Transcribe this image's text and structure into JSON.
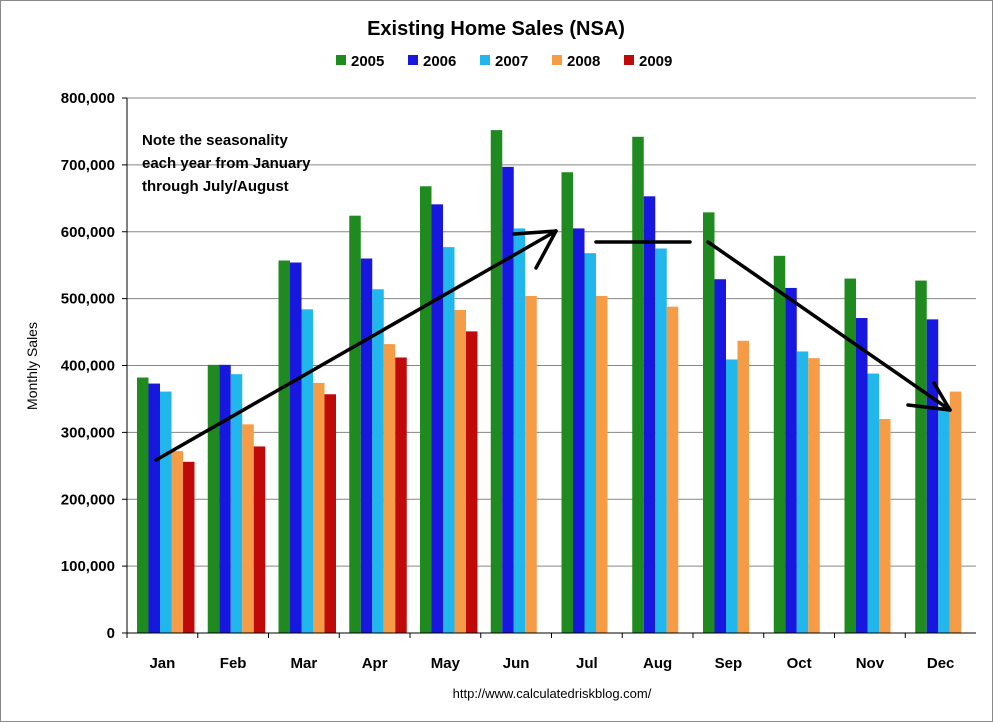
{
  "chart_data": {
    "type": "bar",
    "title": "Existing Home Sales (NSA)",
    "xlabel": "",
    "ylabel": "Monthly Sales",
    "ylim": [
      0,
      800000
    ],
    "yticks": [
      "0",
      "100,000",
      "200,000",
      "300,000",
      "400,000",
      "500,000",
      "600,000",
      "700,000",
      "800,000"
    ],
    "categories": [
      "Jan",
      "Feb",
      "Mar",
      "Apr",
      "May",
      "Jun",
      "Jul",
      "Aug",
      "Sep",
      "Oct",
      "Nov",
      "Dec"
    ],
    "grid": true,
    "legend_position": "top",
    "series": [
      {
        "name": "2005",
        "color": "#1f8a1f",
        "values": [
          382000,
          401000,
          557000,
          624000,
          668000,
          752000,
          689000,
          742000,
          629000,
          564000,
          530000,
          527000
        ]
      },
      {
        "name": "2006",
        "color": "#1717e0",
        "values": [
          373000,
          401000,
          554000,
          560000,
          641000,
          697000,
          605000,
          653000,
          529000,
          516000,
          471000,
          469000
        ]
      },
      {
        "name": "2007",
        "color": "#21b6ec",
        "values": [
          361000,
          387000,
          484000,
          514000,
          577000,
          605000,
          568000,
          575000,
          409000,
          421000,
          388000,
          338000
        ]
      },
      {
        "name": "2008",
        "color": "#f79c46",
        "values": [
          272000,
          312000,
          374000,
          432000,
          483000,
          504000,
          504000,
          488000,
          437000,
          411000,
          320000,
          361000
        ]
      },
      {
        "name": "2009",
        "color": "#c00a0a",
        "values": [
          256000,
          279000,
          357000,
          412000,
          451000,
          null,
          null,
          null,
          null,
          null,
          null,
          null
        ]
      }
    ],
    "annotations": [
      "Note the seasonality",
      "each year from January",
      "through July/August"
    ],
    "source": "http://www.calculatedriskblog.com/"
  }
}
